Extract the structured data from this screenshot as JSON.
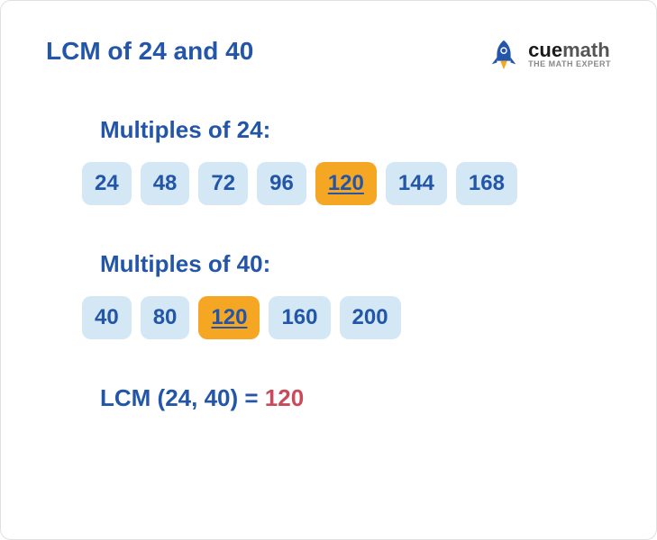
{
  "title": "LCM of 24 and 40",
  "logo": {
    "brand_cue": "cue",
    "brand_math": "math",
    "subtitle": "THE MATH EXPERT",
    "rocket_body": "#2356a8",
    "rocket_flame": "#f5a623"
  },
  "sections": {
    "multiples24": {
      "title": "Multiples of 24:",
      "items": [
        "24",
        "48",
        "72",
        "96",
        "120",
        "144",
        "168"
      ],
      "highlight_index": 4
    },
    "multiples40": {
      "title": "Multiples of 40:",
      "items": [
        "40",
        "80",
        "120",
        "160",
        "200"
      ],
      "highlight_index": 2
    }
  },
  "result": {
    "label": "LCM (24, 40) = ",
    "value": "120"
  },
  "colors": {
    "primary": "#2356a8",
    "chip_bg": "#d4e7f5",
    "highlight_bg": "#f5a623",
    "result_value": "#c94a5a",
    "background": "#ffffff"
  },
  "typography": {
    "title_fontsize": 28,
    "section_title_fontsize": 26,
    "chip_fontsize": 24,
    "result_fontsize": 26
  }
}
